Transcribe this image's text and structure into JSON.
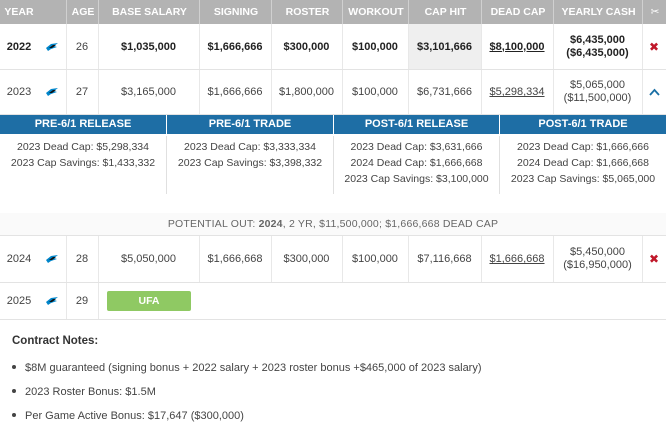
{
  "headers": [
    "YEAR",
    "AGE",
    "BASE SALARY",
    "SIGNING",
    "ROSTER",
    "WORKOUT",
    "CAP HIT",
    "DEAD CAP",
    "YEARLY CASH",
    "✂"
  ],
  "rows": [
    {
      "year": "2022",
      "age": "26",
      "base": "$1,035,000",
      "signing": "$1,666,666",
      "roster": "$300,000",
      "workout": "$100,000",
      "cap_hit": "$3,101,666",
      "dead_cap": "$8,100,000",
      "cash1": "$6,435,000",
      "cash2": "($6,435,000)",
      "action": "✖"
    },
    {
      "year": "2023",
      "age": "27",
      "base": "$3,165,000",
      "signing": "$1,666,666",
      "roster": "$1,800,000",
      "workout": "$100,000",
      "cap_hit": "$6,731,666",
      "dead_cap": "$5,298,334",
      "cash1": "$5,065,000",
      "cash2": "($11,500,000)",
      "action": "^"
    },
    {
      "year": "2024",
      "age": "28",
      "base": "$5,050,000",
      "signing": "$1,666,668",
      "roster": "$300,000",
      "workout": "$100,000",
      "cap_hit": "$7,116,668",
      "dead_cap": "$1,666,668",
      "cash1": "$5,450,000",
      "cash2": "($16,950,000)",
      "action": "✖"
    },
    {
      "year": "2025",
      "age": "29",
      "status": "UFA"
    }
  ],
  "scenarios": [
    {
      "title": "PRE-6/1 RELEASE",
      "lines": [
        "2023 Dead Cap: $5,298,334",
        "2023 Cap Savings: $1,433,332"
      ]
    },
    {
      "title": "PRE-6/1 TRADE",
      "lines": [
        "2023 Dead Cap: $3,333,334",
        "2023 Cap Savings: $3,398,332"
      ]
    },
    {
      "title": "POST-6/1 RELEASE",
      "lines": [
        "2023 Dead Cap: $3,631,666",
        "2024 Dead Cap: $1,666,668",
        "2023 Cap Savings: $3,100,000"
      ]
    },
    {
      "title": "POST-6/1 TRADE",
      "lines": [
        "2023 Dead Cap: $1,666,666",
        "2024 Dead Cap: $1,666,668",
        "2023 Cap Savings: $5,065,000"
      ]
    }
  ],
  "potential": {
    "prefix": "POTENTIAL OUT: ",
    "year": "2024",
    "rest": ", 2 YR, $11,500,000; $1,666,668 DEAD CAP"
  },
  "notes": {
    "title": "Contract Notes:",
    "items": [
      "$8M guaranteed (signing bonus + 2022 salary + 2023 roster bonus +$465,000 of 2023 salary)",
      "2023 Roster Bonus: $1.5M",
      "Per Game Active Bonus: $17,647 ($300,000)"
    ]
  },
  "colors": {
    "header_bg": "#b3b3b3",
    "band_bg": "#1e6ea5",
    "ufa_bg": "#8fc963",
    "x_red": "#c0182a",
    "team_teal": "#0085ca"
  },
  "icons": {
    "team": "panther-logo-icon",
    "remove": "close-icon",
    "collapse": "chevron-up-icon",
    "cut": "scissors-icon"
  }
}
